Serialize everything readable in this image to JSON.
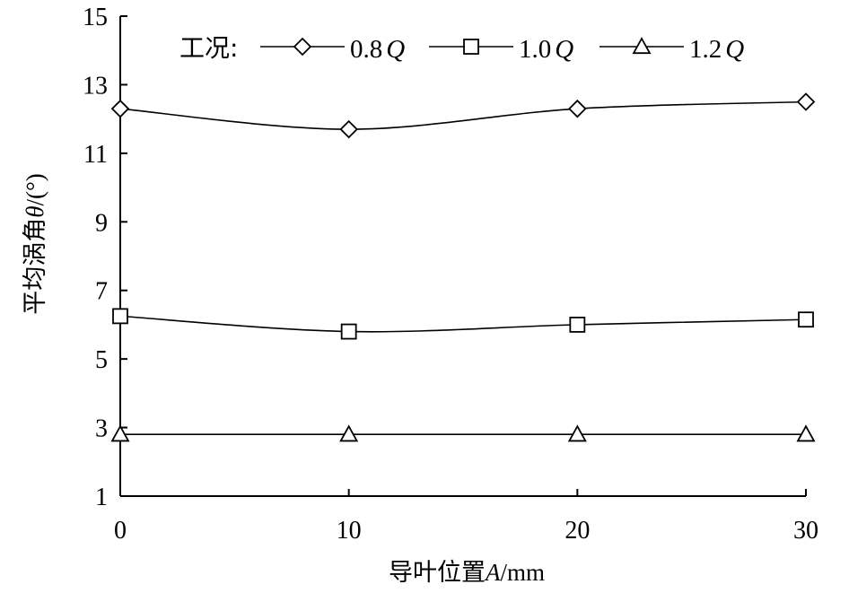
{
  "chart_data": {
    "type": "line",
    "xlabel_prefix": "导叶位置",
    "xlabel_var": "A",
    "xlabel_unit": "/mm",
    "ylabel_prefix": "平均涡角",
    "ylabel_var": "θ",
    "ylabel_unit": "/(°)",
    "xlim": [
      0,
      30
    ],
    "ylim": [
      1,
      15
    ],
    "xticks": [
      0,
      10,
      20,
      30
    ],
    "yticks": [
      1,
      3,
      5,
      7,
      9,
      11,
      13,
      15
    ],
    "legend_title": "工况:",
    "legend_position": "top",
    "grid": false,
    "x": [
      0,
      10,
      20,
      30
    ],
    "series": [
      {
        "name_num": "0.8",
        "name_var": "Q",
        "marker": "diamond",
        "values": [
          12.3,
          11.7,
          12.3,
          12.5
        ]
      },
      {
        "name_num": "1.0",
        "name_var": "Q",
        "marker": "square",
        "values": [
          6.25,
          5.8,
          6.0,
          6.15
        ]
      },
      {
        "name_num": "1.2",
        "name_var": "Q",
        "marker": "triangle",
        "values": [
          2.8,
          2.8,
          2.8,
          2.8
        ]
      }
    ]
  }
}
